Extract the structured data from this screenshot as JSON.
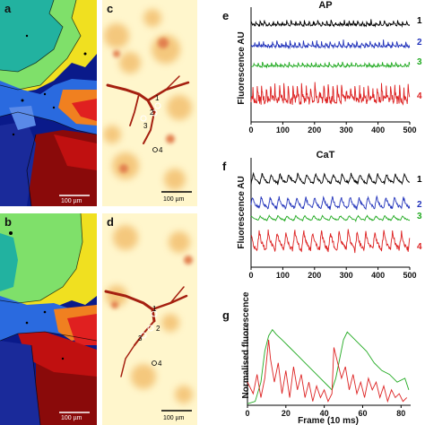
{
  "panels": {
    "a": {
      "label": "a",
      "scale_bar": "100 µm"
    },
    "b": {
      "label": "b",
      "scale_bar": "100 µm"
    },
    "c": {
      "label": "c",
      "scale_bar": "100 µm",
      "markers": [
        "1",
        "2",
        "3",
        "4"
      ]
    },
    "d": {
      "label": "d",
      "scale_bar": "100 µm",
      "markers": [
        "1",
        "2",
        "3",
        "4"
      ]
    },
    "e": {
      "label": "e",
      "title": "AP",
      "ylabel": "Fluorescence AU"
    },
    "f": {
      "label": "f",
      "title": "CaT",
      "ylabel": "Fluorescence AU"
    },
    "g": {
      "label": "g",
      "ylabel": "Normalised fluorescence",
      "xlabel": "Frame (10 ms)"
    }
  },
  "colors": {
    "trace1": "#000000",
    "trace2": "#2233bb",
    "trace3": "#22aa22",
    "trace4": "#dd2222"
  },
  "chart_data": [
    {
      "type": "line",
      "title": "AP",
      "ylabel": "Fluorescence AU",
      "xlim": [
        0,
        500
      ],
      "xticks": [
        0,
        100,
        200,
        300,
        400,
        500
      ],
      "series": [
        {
          "name": "1",
          "period": 14,
          "amplitude": 0.25
        },
        {
          "name": "2",
          "period": 14,
          "amplitude": 0.3
        },
        {
          "name": "3",
          "period": 14,
          "amplitude": 0.2
        },
        {
          "name": "4",
          "period": 14,
          "amplitude": 0.9
        }
      ]
    },
    {
      "type": "line",
      "title": "CaT",
      "ylabel": "Fluorescence AU",
      "xlim": [
        0,
        500
      ],
      "xticks": [
        0,
        100,
        200,
        300,
        400,
        500
      ],
      "series": [
        {
          "name": "1",
          "period": 28,
          "amplitude": 0.5
        },
        {
          "name": "2",
          "period": 28,
          "amplitude": 0.6
        },
        {
          "name": "3",
          "period": 28,
          "amplitude": 0.25
        },
        {
          "name": "4",
          "period": 28,
          "amplitude": 1.0
        }
      ]
    },
    {
      "type": "line",
      "ylabel": "Normalised fluorescence",
      "xlabel": "Frame (10 ms)",
      "xlim": [
        0,
        85
      ],
      "xticks": [
        0,
        20,
        40,
        60,
        80
      ],
      "series": [
        {
          "color": "green",
          "x": [
            0,
            4,
            7,
            9,
            11,
            13,
            15,
            18,
            22,
            26,
            30,
            34,
            38,
            42,
            44,
            46,
            48,
            50,
            52,
            54,
            58,
            62,
            66,
            70,
            74,
            78,
            82,
            84
          ],
          "y": [
            0.02,
            0.05,
            0.3,
            0.7,
            0.9,
            0.98,
            0.92,
            0.85,
            0.75,
            0.65,
            0.55,
            0.45,
            0.35,
            0.25,
            0.2,
            0.35,
            0.6,
            0.85,
            0.95,
            0.9,
            0.8,
            0.7,
            0.55,
            0.45,
            0.4,
            0.3,
            0.35,
            0.2
          ]
        },
        {
          "color": "red",
          "x": [
            0,
            3,
            5,
            7,
            9,
            11,
            12,
            14,
            16,
            18,
            20,
            22,
            24,
            26,
            28,
            30,
            32,
            34,
            36,
            38,
            40,
            42,
            44,
            45,
            47,
            49,
            51,
            53,
            55,
            57,
            59,
            61,
            63,
            65,
            67,
            69,
            71,
            73,
            75,
            77,
            79,
            81,
            83
          ],
          "y": [
            0.3,
            0.15,
            0.4,
            0.1,
            0.35,
            0.85,
            0.6,
            0.3,
            0.55,
            0.15,
            0.45,
            0.1,
            0.5,
            0.2,
            0.4,
            0.1,
            0.3,
            0.05,
            0.25,
            0.1,
            0.2,
            0.05,
            0.15,
            0.75,
            0.55,
            0.35,
            0.5,
            0.2,
            0.4,
            0.15,
            0.3,
            0.1,
            0.35,
            0.2,
            0.3,
            0.1,
            0.25,
            0.05,
            0.2,
            0.1,
            0.15,
            0.05,
            0.1
          ]
        }
      ]
    }
  ]
}
